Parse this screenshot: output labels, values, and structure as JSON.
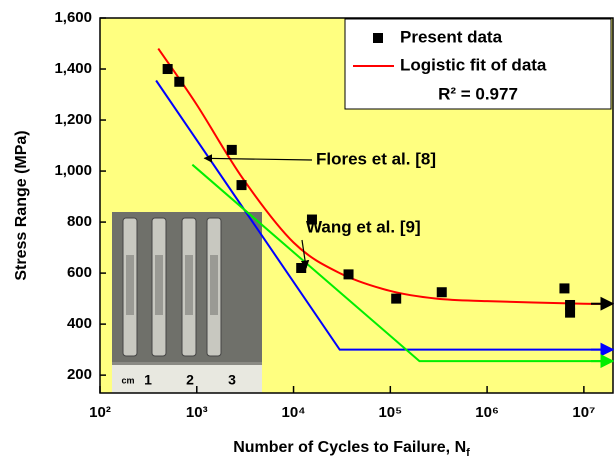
{
  "chart_data": {
    "type": "scatter",
    "ylabel": "Stress Range (MPa)",
    "xlabel": "Number of Cycles to Failure, N",
    "xlabel_sub": "f",
    "xlog": true,
    "xlim": [
      100,
      20000000
    ],
    "ylim": [
      130,
      1600
    ],
    "xticks": [
      {
        "value": 100,
        "label": "10²"
      },
      {
        "value": 1000,
        "label": "10³"
      },
      {
        "value": 10000,
        "label": "10⁴"
      },
      {
        "value": 100000,
        "label": "10⁵"
      },
      {
        "value": 1000000,
        "label": "10⁶"
      },
      {
        "value": 10000000,
        "label": "10⁷"
      }
    ],
    "yticks": [
      200,
      400,
      600,
      800,
      {
        "value": 1000,
        "label": "1,000"
      },
      {
        "value": 1200,
        "label": "1,200"
      },
      {
        "value": 1400,
        "label": "1,400"
      },
      {
        "value": 1600,
        "label": "1,600"
      }
    ],
    "background": "#ffff80",
    "series": [
      {
        "name": "Present data",
        "type": "scatter",
        "color": "#000000",
        "x": [
          500,
          660,
          2300,
          2900,
          15500,
          12000,
          37000,
          115000,
          340000,
          6300000,
          7200000,
          7200000
        ],
        "values": [
          1400,
          1350,
          1083,
          945,
          810,
          620,
          595,
          500,
          525,
          540,
          475,
          445
        ]
      },
      {
        "name": "Logistic fit of data",
        "type": "line",
        "color": "#ff0000",
        "arrow_color": "#000000",
        "x": [
          400,
          1000,
          3000,
          10000,
          30000,
          100000,
          300000,
          1000000,
          10000000,
          20000000
        ],
        "values": [
          1480,
          1260,
          970,
          720,
          600,
          530,
          500,
          490,
          480,
          480
        ]
      },
      {
        "type": "line",
        "color": "#0000ff",
        "arrow_color": "#0000ff",
        "x": [
          380,
          30000,
          20000000
        ],
        "values": [
          1355,
          300,
          300
        ]
      },
      {
        "type": "line",
        "color": "#00ee00",
        "arrow_color": "#00ee00",
        "x": [
          900,
          200000,
          20000000
        ],
        "values": [
          1025,
          255,
          255
        ]
      }
    ],
    "annotations": [
      {
        "text": "Flores et al. [8]",
        "x": 1200,
        "y": 1050
      },
      {
        "text": "Wang et al. [9]",
        "x": 13500,
        "y": 620
      }
    ],
    "r_squared_label": "R² = 0.977",
    "photo_labels": [
      "cm",
      "1",
      "2",
      "3"
    ]
  }
}
